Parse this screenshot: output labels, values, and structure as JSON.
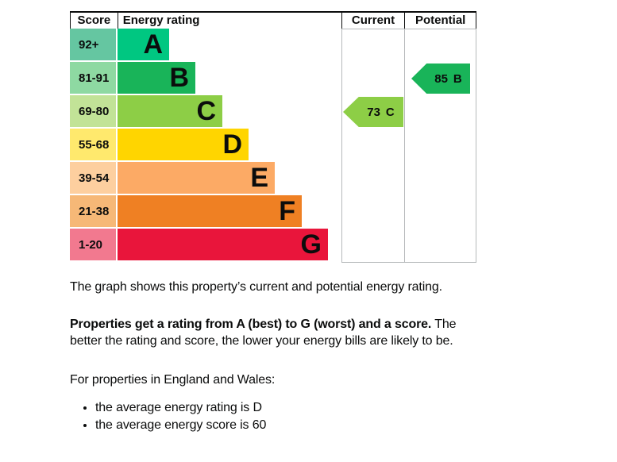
{
  "chart_data": {
    "type": "bar",
    "title": "Energy rating",
    "columns": [
      "Score",
      "Energy rating",
      "Current",
      "Potential"
    ],
    "bands": [
      {
        "score_range": "92+",
        "letter": "A",
        "color": "#00c781",
        "tint": "#65c6a1"
      },
      {
        "score_range": "81-91",
        "letter": "B",
        "color": "#19b459",
        "tint": "#8ed9a2"
      },
      {
        "score_range": "69-80",
        "letter": "C",
        "color": "#8dce46",
        "tint": "#c2e397"
      },
      {
        "score_range": "55-68",
        "letter": "D",
        "color": "#ffd500",
        "tint": "#ffe96d"
      },
      {
        "score_range": "39-54",
        "letter": "E",
        "color": "#fcaa65",
        "tint": "#fdcf9f"
      },
      {
        "score_range": "21-38",
        "letter": "F",
        "color": "#ef8023",
        "tint": "#f6b877"
      },
      {
        "score_range": "1-20",
        "letter": "G",
        "color": "#e9153b",
        "tint": "#f2798f"
      }
    ],
    "current": {
      "score": "73",
      "band": "C",
      "color": "#8dce46",
      "band_row": 2
    },
    "potential": {
      "score": "85",
      "band": "B",
      "color": "#19b459",
      "band_row": 1
    }
  },
  "description": {
    "intro": "The graph shows this property’s current and potential energy rating.",
    "rating_bold": "Properties get a rating from A (best) to G (worst) and a score.",
    "rating_rest": "The better the rating and score, the lower your energy bills are likely to be.",
    "region_line": "For properties in England and Wales:",
    "bullets": [
      "the average energy rating is D",
      "the average energy score is 60"
    ]
  },
  "colors": {
    "text": "#0b0c0c",
    "grid": "#b6b9bb",
    "header_border": "#0b0c0c"
  }
}
